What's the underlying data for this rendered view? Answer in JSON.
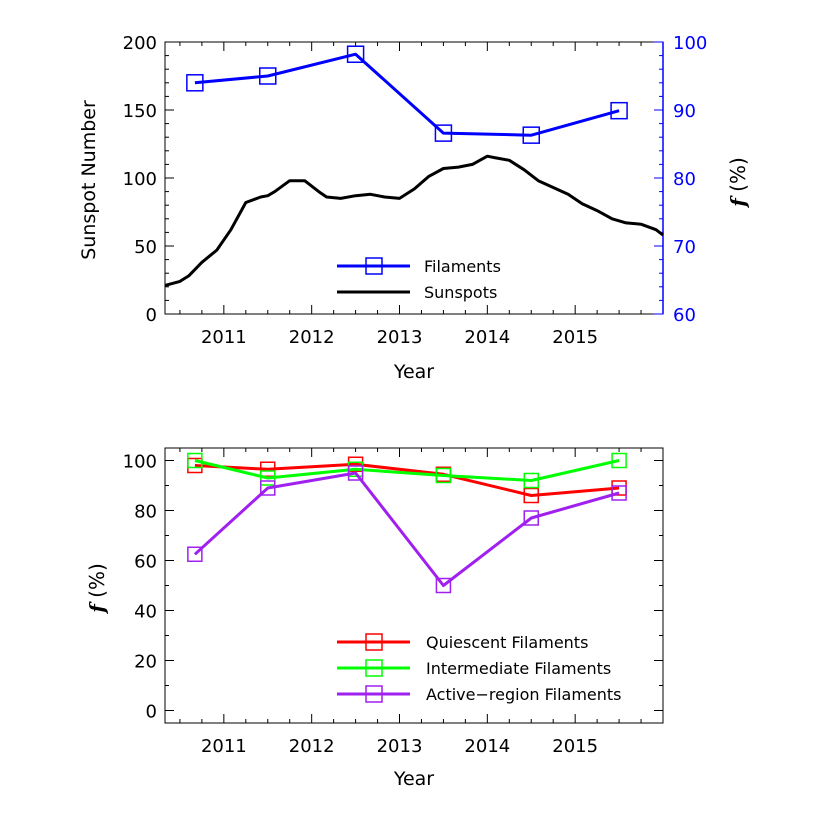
{
  "chart_data": [
    {
      "type": "line",
      "title": "",
      "xlabel": "Year",
      "ylabel": "Sunspot Number",
      "y2label": "f (%)",
      "xlim": [
        2010.33,
        2016.0
      ],
      "ylim": [
        0,
        200
      ],
      "y2lim": [
        60,
        100
      ],
      "xticks": [
        2011,
        2012,
        2013,
        2014,
        2015
      ],
      "xticklabels": [
        "2011",
        "2012",
        "2013",
        "2014",
        "2015"
      ],
      "yticks": [
        0,
        50,
        100,
        150,
        200
      ],
      "yticklabels": [
        "0",
        "50",
        "100",
        "150",
        "200"
      ],
      "y2ticks": [
        60,
        70,
        80,
        90,
        100
      ],
      "y2ticklabels": [
        "60",
        "70",
        "80",
        "90",
        "100"
      ],
      "grid": false,
      "legend_position": "bottom-center",
      "series": [
        {
          "name": "Filaments",
          "axis": "right",
          "color": "#0000ff",
          "marker": "square",
          "x": [
            2010.67,
            2011.5,
            2012.5,
            2013.5,
            2014.5,
            2015.5
          ],
          "y": [
            94,
            95,
            98.2,
            86.6,
            86.3,
            89.9
          ]
        },
        {
          "name": "Sunspots",
          "axis": "left",
          "color": "#000000",
          "marker": "none",
          "x": [
            2010.33,
            2010.5,
            2010.6,
            2010.75,
            2010.92,
            2011.08,
            2011.25,
            2011.42,
            2011.5,
            2011.58,
            2011.75,
            2011.92,
            2012.08,
            2012.17,
            2012.33,
            2012.5,
            2012.67,
            2012.83,
            2013.0,
            2013.17,
            2013.33,
            2013.5,
            2013.67,
            2013.83,
            2014.0,
            2014.08,
            2014.25,
            2014.42,
            2014.58,
            2014.75,
            2014.92,
            2015.08,
            2015.25,
            2015.42,
            2015.58,
            2015.75,
            2015.92,
            2016.0
          ],
          "y": [
            21,
            24,
            28,
            38,
            47,
            62,
            82,
            86,
            87,
            90,
            98,
            98,
            90,
            86,
            85,
            87,
            88,
            86,
            85,
            92,
            101,
            107,
            108,
            110,
            116,
            115,
            113,
            106,
            98,
            93,
            88,
            81,
            76,
            70,
            67,
            66,
            62,
            58
          ]
        }
      ]
    },
    {
      "type": "line",
      "title": "",
      "xlabel": "Year",
      "ylabel": "f (%)",
      "xlim": [
        2010.33,
        2016.0
      ],
      "ylim": [
        -5,
        105
      ],
      "xticks": [
        2011,
        2012,
        2013,
        2014,
        2015
      ],
      "xticklabels": [
        "2011",
        "2012",
        "2013",
        "2014",
        "2015"
      ],
      "yticks": [
        0,
        20,
        40,
        60,
        80,
        100
      ],
      "yticklabels": [
        "0",
        "20",
        "40",
        "60",
        "80",
        "100"
      ],
      "grid": false,
      "legend_position": "bottom-right",
      "series": [
        {
          "name": "Quiescent Filaments",
          "color": "#ff0000",
          "marker": "square",
          "x": [
            2010.67,
            2011.5,
            2012.5,
            2013.5,
            2014.5,
            2015.5
          ],
          "y": [
            98,
            96.5,
            98.5,
            94.5,
            86,
            89
          ]
        },
        {
          "name": "Intermediate Filaments",
          "color": "#00ff00",
          "marker": "square",
          "x": [
            2010.67,
            2011.5,
            2012.5,
            2013.5,
            2014.5,
            2015.5
          ],
          "y": [
            100,
            93,
            96.5,
            94,
            92,
            100
          ]
        },
        {
          "name": "Active−region Filaments",
          "color": "#a020f0",
          "marker": "square",
          "x": [
            2010.67,
            2011.5,
            2012.5,
            2013.5,
            2014.5,
            2015.5
          ],
          "y": [
            62.5,
            89,
            95,
            50,
            77,
            87
          ]
        }
      ]
    }
  ]
}
